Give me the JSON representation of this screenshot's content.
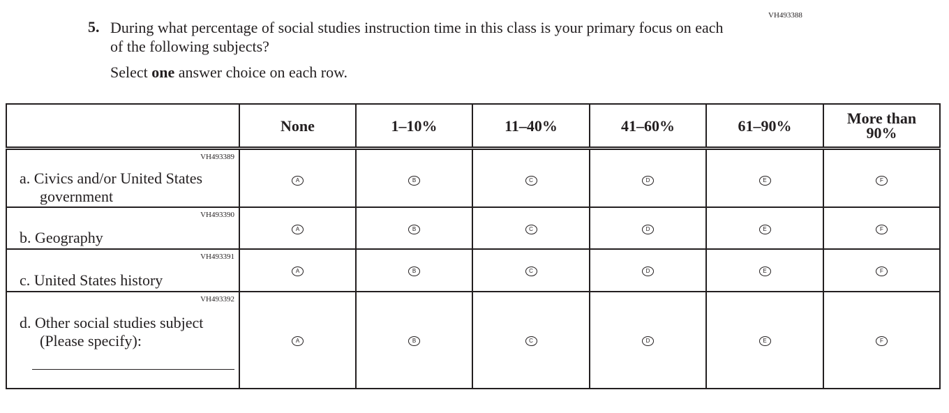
{
  "question": {
    "id": "VH493388",
    "number": "5.",
    "text": "During what percentage of social studies instruction time in this class is your primary focus on each of the following subjects?",
    "instruction_pre": "Select ",
    "instruction_bold": "one",
    "instruction_post": " answer choice on each row."
  },
  "columns": [
    "None",
    "1–10%",
    "11–40%",
    "41–60%",
    "61–90%",
    "More than 90%"
  ],
  "options": [
    "A",
    "B",
    "C",
    "D",
    "E",
    "F"
  ],
  "rows": [
    {
      "id": "VH493389",
      "label": "a. Civics and/or United States government"
    },
    {
      "id": "VH493390",
      "label": "b. Geography"
    },
    {
      "id": "VH493391",
      "label": "c. United States history"
    },
    {
      "id": "VH493392",
      "label": "d. Other social studies subject (Please specify):"
    }
  ]
}
